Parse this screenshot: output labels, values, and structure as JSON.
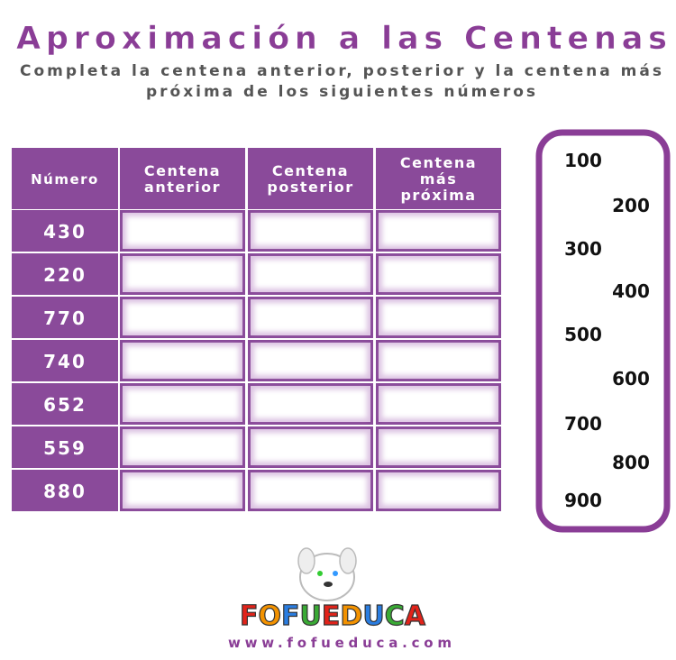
{
  "header": {
    "title": "Aproximación a las Centenas",
    "subtitle": [
      "Completa la centena anterior, posterior y la centena más",
      "próxima de los siguientes números"
    ]
  },
  "table": {
    "columns": [
      [
        "Número"
      ],
      [
        "Centena",
        "anterior"
      ],
      [
        "Centena",
        "posterior"
      ],
      [
        "Centena",
        "más",
        "próxima"
      ]
    ],
    "rows": [
      "430",
      "220",
      "770",
      "740",
      "652",
      "559",
      "880"
    ]
  },
  "reference": [
    "100",
    "200",
    "300",
    "400",
    "500",
    "600",
    "700",
    "800",
    "900"
  ],
  "footer": {
    "logo": "FOFUEDUCA",
    "url": "www.fofueduca.com"
  }
}
